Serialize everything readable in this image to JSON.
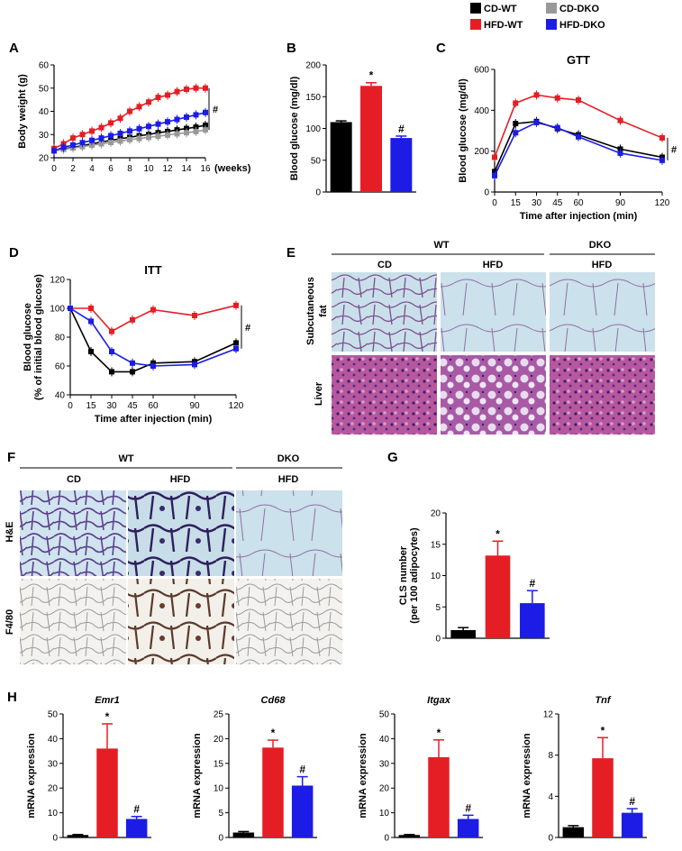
{
  "colors": {
    "cd_wt": "#000000",
    "cd_dko": "#999999",
    "hfd_wt": "#e51e25",
    "hfd_dko": "#1c1ce6"
  },
  "legend": {
    "items": [
      {
        "label": "CD-WT",
        "color": "#000000"
      },
      {
        "label": "CD-DKO",
        "color": "#999999"
      },
      {
        "label": "HFD-WT",
        "color": "#e51e25"
      },
      {
        "label": "HFD-DKO",
        "color": "#1c1ce6"
      }
    ]
  },
  "panels": {
    "A": "A",
    "B": "B",
    "C": "C",
    "D": "D",
    "E": "E",
    "F": "F",
    "G": "G",
    "H": "H"
  },
  "micrographs": {
    "E": {
      "group_wt": "WT",
      "group_dko": "DKO",
      "col_cd": "CD",
      "col_hfd": "HFD",
      "col_dko_hfd": "HFD",
      "row_fat_line1": "Subcutaneous",
      "row_fat_line2": "fat",
      "row_liver": "Liver"
    },
    "F": {
      "group_wt": "WT",
      "group_dko": "DKO",
      "col_cd": "CD",
      "col_hfd": "HFD",
      "col_dko_hfd": "HFD",
      "row_he": "H&E",
      "row_f480": "F4/80"
    }
  },
  "chart_data": [
    {
      "id": "A",
      "type": "line",
      "ylabel": "Body weight (g)",
      "xlabel": "(weeks)",
      "ylim": [
        20,
        60
      ],
      "yticks": [
        20,
        30,
        40,
        50,
        60
      ],
      "xlim": [
        0,
        16
      ],
      "xticks": [
        0,
        2,
        4,
        6,
        8,
        10,
        12,
        14,
        16
      ],
      "x": [
        0,
        1,
        2,
        3,
        4,
        5,
        6,
        7,
        8,
        9,
        10,
        11,
        12,
        13,
        14,
        15,
        16
      ],
      "series": [
        {
          "name": "CD-WT",
          "color": "#000000",
          "values": [
            23,
            23.8,
            24.5,
            25.2,
            26,
            26.8,
            27.5,
            28.2,
            28.8,
            29.5,
            30,
            30.8,
            31.3,
            32,
            32.6,
            33.2,
            34
          ]
        },
        {
          "name": "CD-DKO",
          "color": "#999999",
          "values": [
            23,
            23.6,
            24.2,
            24.8,
            25.4,
            26,
            26.6,
            27.2,
            27.8,
            28.3,
            28.8,
            29.3,
            29.8,
            30.3,
            30.8,
            31.3,
            32
          ]
        },
        {
          "name": "HFD-WT",
          "color": "#e51e25",
          "values": [
            24,
            26,
            28.5,
            30,
            31.5,
            33,
            35,
            37,
            40,
            42,
            44,
            46,
            47,
            48.5,
            49.5,
            50,
            50
          ]
        },
        {
          "name": "HFD-DKO",
          "color": "#1c1ce6",
          "values": [
            23,
            24.5,
            25.5,
            26.5,
            27.5,
            28.5,
            29.5,
            30.5,
            31.5,
            32.5,
            33.5,
            34.5,
            35.5,
            36.5,
            37.5,
            38.5,
            39.5
          ]
        }
      ],
      "annotation": "#"
    },
    {
      "id": "B",
      "type": "bar",
      "ylabel": "Blood glucose (mg/dl)",
      "ylim": [
        0,
        200
      ],
      "yticks": [
        0,
        50,
        100,
        150,
        200
      ],
      "categories": [
        "CD-WT",
        "HFD-WT",
        "HFD-DKO"
      ],
      "values": [
        110,
        167,
        85
      ],
      "errors": [
        2,
        5,
        3
      ],
      "colors": [
        "#000000",
        "#e51e25",
        "#1c1ce6"
      ],
      "marks": [
        "",
        "*",
        "#"
      ]
    },
    {
      "id": "C",
      "type": "line",
      "title": "GTT",
      "ylabel": "Blood glucose (mg/dl)",
      "xlabel": "Time after injection (min)",
      "ylim": [
        0,
        600
      ],
      "yticks": [
        0,
        200,
        400,
        600
      ],
      "xticks": [
        0,
        15,
        30,
        45,
        60,
        90,
        120
      ],
      "x": [
        0,
        15,
        30,
        45,
        60,
        90,
        120
      ],
      "series": [
        {
          "name": "CD-WT",
          "color": "#000000",
          "values": [
            100,
            335,
            345,
            310,
            280,
            210,
            170
          ]
        },
        {
          "name": "HFD-WT",
          "color": "#e51e25",
          "values": [
            170,
            435,
            475,
            460,
            450,
            350,
            265
          ]
        },
        {
          "name": "HFD-DKO",
          "color": "#1c1ce6",
          "values": [
            80,
            290,
            340,
            315,
            270,
            190,
            155
          ]
        }
      ],
      "annotation": "#"
    },
    {
      "id": "D",
      "type": "line",
      "title": "ITT",
      "ylabel": "Blood glucose",
      "ylabel2": "(% of initial blood glucose)",
      "xlabel": "Time after injection (min)",
      "ylim": [
        40,
        120
      ],
      "yticks": [
        40,
        60,
        80,
        100,
        120
      ],
      "xticks": [
        0,
        15,
        30,
        45,
        60,
        90,
        120
      ],
      "x": [
        0,
        15,
        30,
        45,
        60,
        90,
        120
      ],
      "series": [
        {
          "name": "CD-WT",
          "color": "#000000",
          "values": [
            100,
            70,
            56,
            56,
            62,
            63,
            76
          ]
        },
        {
          "name": "HFD-WT",
          "color": "#e51e25",
          "values": [
            100,
            100,
            84,
            92,
            99,
            95,
            102
          ]
        },
        {
          "name": "HFD-DKO",
          "color": "#1c1ce6",
          "values": [
            100,
            91,
            70,
            62,
            60,
            61,
            72
          ]
        }
      ],
      "annotation": "#"
    },
    {
      "id": "G",
      "type": "bar",
      "ylabel": "CLS number",
      "ylabel2": "(per 100 adipocytes)",
      "ylim": [
        0,
        20
      ],
      "yticks": [
        0,
        5,
        10,
        15,
        20
      ],
      "categories": [
        "CD-WT",
        "HFD-WT",
        "HFD-DKO"
      ],
      "values": [
        1.3,
        13.2,
        5.6
      ],
      "errors": [
        0.4,
        2.3,
        2.0
      ],
      "colors": [
        "#000000",
        "#e51e25",
        "#1c1ce6"
      ],
      "marks": [
        "",
        "*",
        "#"
      ]
    },
    {
      "id": "H1",
      "type": "bar",
      "title": "Emr1",
      "ylabel": "mRNA expression",
      "ylim": [
        0,
        50
      ],
      "yticks": [
        0,
        10,
        20,
        30,
        40,
        50
      ],
      "categories": [
        "CD-WT",
        "HFD-WT",
        "HFD-DKO"
      ],
      "values": [
        1,
        36,
        7.5
      ],
      "errors": [
        0.2,
        10,
        1
      ],
      "colors": [
        "#000000",
        "#e51e25",
        "#1c1ce6"
      ],
      "marks": [
        "",
        "*",
        "#"
      ]
    },
    {
      "id": "H2",
      "type": "bar",
      "title": "Cd68",
      "ylabel": "mRNA expression",
      "ylim": [
        0,
        25
      ],
      "yticks": [
        0,
        5,
        10,
        15,
        20,
        25
      ],
      "categories": [
        "CD-WT",
        "HFD-WT",
        "HFD-DKO"
      ],
      "values": [
        1,
        18.2,
        10.5
      ],
      "errors": [
        0.2,
        1.5,
        1.8
      ],
      "colors": [
        "#000000",
        "#e51e25",
        "#1c1ce6"
      ],
      "marks": [
        "",
        "*",
        "#"
      ]
    },
    {
      "id": "H3",
      "type": "bar",
      "title": "Itgax",
      "ylabel": "mRNA expression",
      "ylim": [
        0,
        50
      ],
      "yticks": [
        0,
        10,
        20,
        30,
        40,
        50
      ],
      "categories": [
        "CD-WT",
        "HFD-WT",
        "HFD-DKO"
      ],
      "values": [
        1,
        32.5,
        7.5
      ],
      "errors": [
        0.2,
        7,
        1.5
      ],
      "colors": [
        "#000000",
        "#e51e25",
        "#1c1ce6"
      ],
      "marks": [
        "",
        "*",
        "#"
      ]
    },
    {
      "id": "H4",
      "type": "bar",
      "title": "Tnf",
      "ylabel": "mRNA expression",
      "ylim": [
        0,
        12
      ],
      "yticks": [
        0,
        4,
        8,
        12
      ],
      "categories": [
        "CD-WT",
        "HFD-WT",
        "HFD-DKO"
      ],
      "values": [
        1,
        7.7,
        2.4
      ],
      "errors": [
        0.15,
        2,
        0.4
      ],
      "colors": [
        "#000000",
        "#e51e25",
        "#1c1ce6"
      ],
      "marks": [
        "",
        "*",
        "#"
      ]
    }
  ]
}
